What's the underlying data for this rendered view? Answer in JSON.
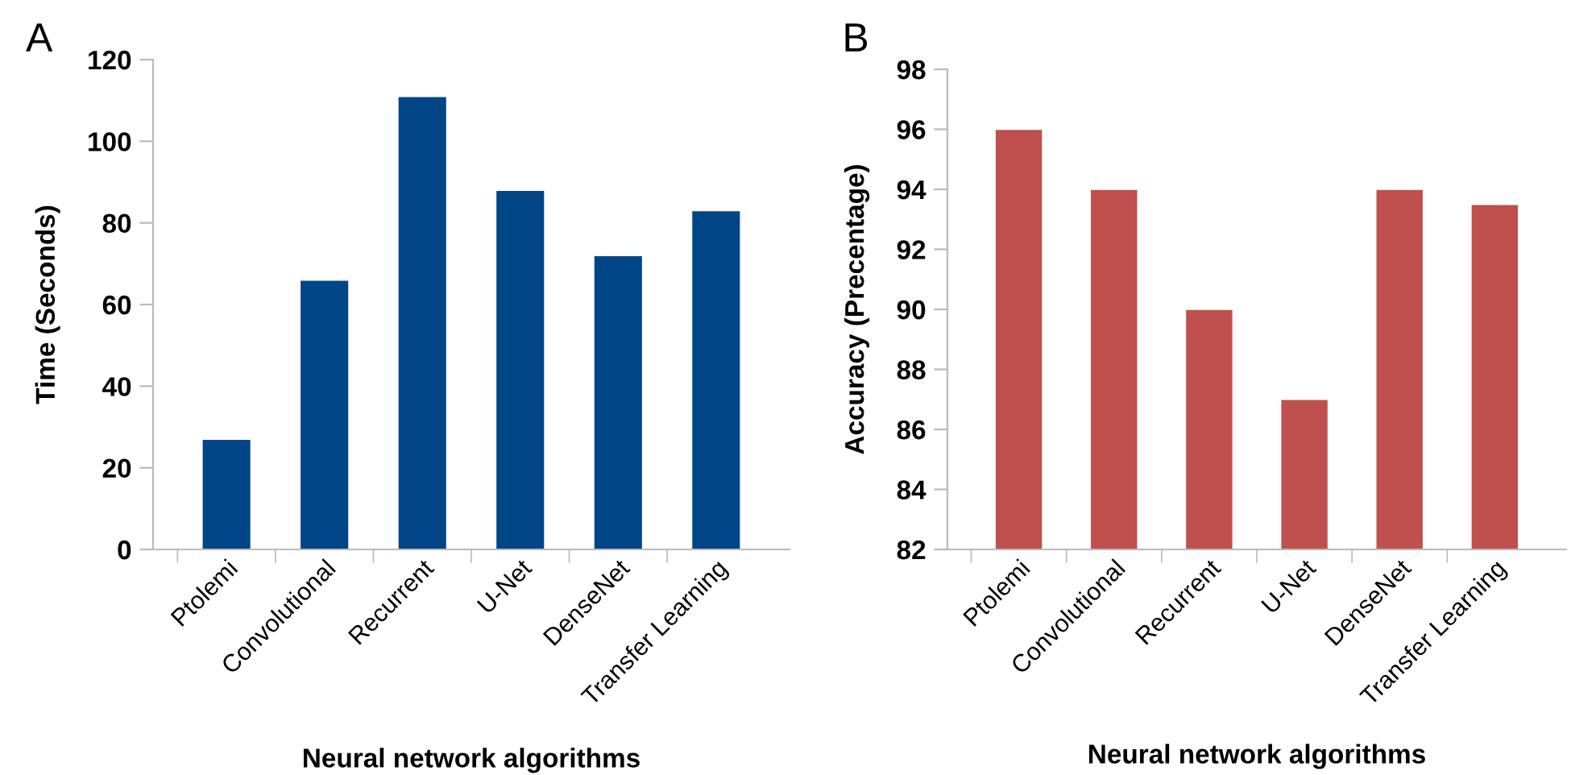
{
  "chart_data": [
    {
      "type": "bar",
      "title": "A",
      "xlabel": "Neural network algorithms",
      "ylabel": "Time (Seconds)",
      "categories": [
        "Ptolemi",
        "Convolutional",
        "Recurrent",
        "U-Net",
        "DenseNet",
        "Transfer Learning"
      ],
      "values": [
        27,
        66,
        111,
        88,
        72,
        83
      ],
      "color": "#004586",
      "ylim": [
        0,
        120
      ],
      "yticks": [
        0,
        20,
        40,
        60,
        80,
        100,
        120
      ],
      "grid": false,
      "legend": false
    },
    {
      "type": "bar",
      "title": "B",
      "xlabel": "Neural network algorithms",
      "ylabel": "Accuracy (Precentage)",
      "categories": [
        "Ptolemi",
        "Convolutional",
        "Recurrent",
        "U-Net",
        "DenseNet",
        "Transfer Learning"
      ],
      "values": [
        96,
        94,
        90,
        87,
        94,
        93.5
      ],
      "color": "#c0504d",
      "ylim": [
        82,
        98
      ],
      "yticks": [
        82,
        84,
        86,
        88,
        90,
        92,
        94,
        96,
        98
      ],
      "grid": false,
      "legend": false
    }
  ]
}
